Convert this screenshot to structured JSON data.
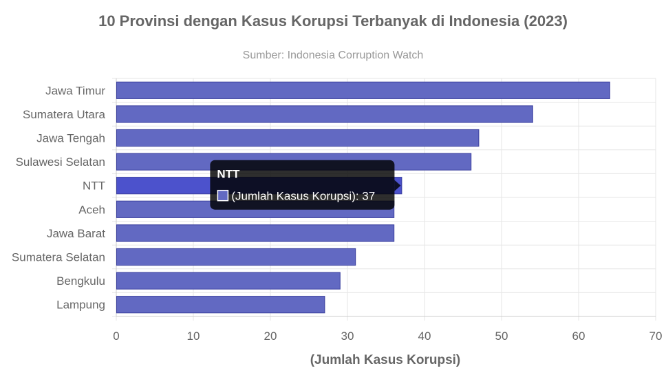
{
  "chart_data": {
    "type": "bar",
    "orientation": "horizontal",
    "title": "10 Provinsi dengan Kasus Korupsi Terbanyak di Indonesia (2023)",
    "subtitle": "Sumber: Indonesia Corruption Watch",
    "xlabel": "(Jumlah Kasus Korupsi)",
    "ylabel": "",
    "categories": [
      "Jawa Timur",
      "Sumatera Utara",
      "Jawa Tengah",
      "Sulawesi Selatan",
      "NTT",
      "Aceh",
      "Jawa Barat",
      "Sumatera Selatan",
      "Bengkulu",
      "Lampung"
    ],
    "series": [
      {
        "values": [
          64,
          54,
          47,
          46,
          37,
          36,
          36,
          31,
          29,
          27
        ]
      }
    ],
    "xlim": [
      0,
      70
    ],
    "xticks": [
      0,
      10,
      20,
      30,
      40,
      50,
      60,
      70
    ],
    "grid": true,
    "legend": "none",
    "colors": {
      "bar_fill": "#6269c2",
      "bar_stroke": "#3a3f9e",
      "bar_highlight": "#4c52cc",
      "grid": "#e6e6e6",
      "title": "#666666",
      "subtitle": "#999999",
      "tick": "#666666",
      "tooltip_bg": "#000000"
    },
    "tooltip": {
      "category": "NTT",
      "title": "NTT",
      "label": "(Jumlah Kasus Korupsi): 37"
    }
  }
}
